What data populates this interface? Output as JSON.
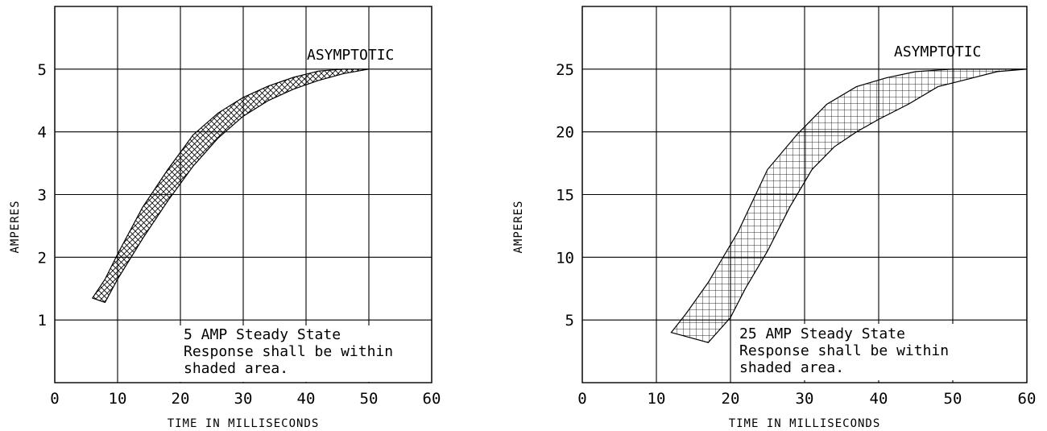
{
  "chart_data": [
    {
      "type": "area",
      "title": "",
      "xlabel": "TIME IN MILLISECONDS",
      "ylabel": "AMPERES",
      "xlim": [
        0,
        60
      ],
      "ylim": [
        0,
        6
      ],
      "grid": true,
      "x_ticks": [
        "0",
        "10",
        "20",
        "30",
        "40",
        "50",
        "60"
      ],
      "y_ticks": [
        "1",
        "2",
        "3",
        "4",
        "5"
      ],
      "annotation": "ASYMPTOTIC",
      "note_lines": [
        "5 AMP Steady State",
        "Response shall be within",
        "shaded area."
      ],
      "series": [
        {
          "x": [
            6,
            8,
            10,
            14,
            18,
            22,
            26,
            30,
            34,
            38,
            42,
            46,
            50
          ],
          "y": [
            1.35,
            1.65,
            2.05,
            2.8,
            3.4,
            3.95,
            4.3,
            4.55,
            4.73,
            4.87,
            4.97,
            5.0,
            5.0
          ]
        },
        {
          "x": [
            8,
            10,
            14,
            18,
            22,
            26,
            30,
            34,
            38,
            42,
            46,
            50
          ],
          "y": [
            1.28,
            1.65,
            2.3,
            2.9,
            3.45,
            3.9,
            4.25,
            4.5,
            4.68,
            4.82,
            4.93,
            5.0
          ]
        }
      ]
    },
    {
      "type": "area",
      "title": "",
      "xlabel": "TIME IN MILLISECONDS",
      "ylabel": "AMPERES",
      "xlim": [
        0,
        60
      ],
      "ylim": [
        0,
        30
      ],
      "grid": true,
      "x_ticks": [
        "0",
        "10",
        "20",
        "30",
        "40",
        "50",
        "60"
      ],
      "y_ticks": [
        "5",
        "10",
        "15",
        "20",
        "25"
      ],
      "annotation": "ASYMPTOTIC",
      "note_lines": [
        "25 AMP Steady State",
        "Response shall be within",
        "shaded area."
      ],
      "series": [
        {
          "x": [
            12,
            14,
            17,
            21,
            25,
            29,
            33,
            37,
            41,
            45,
            50,
            55,
            60
          ],
          "y": [
            4,
            5.5,
            8,
            12,
            17,
            19.8,
            22.2,
            23.6,
            24.3,
            24.8,
            25,
            25,
            25
          ]
        },
        {
          "x": [
            17,
            20,
            22,
            25,
            28,
            31,
            34,
            37,
            40,
            44,
            48,
            52,
            56,
            60
          ],
          "y": [
            3.2,
            5.2,
            7.5,
            10.5,
            14,
            17,
            18.8,
            20,
            21,
            22.2,
            23.6,
            24.2,
            24.8,
            25
          ]
        }
      ]
    }
  ]
}
